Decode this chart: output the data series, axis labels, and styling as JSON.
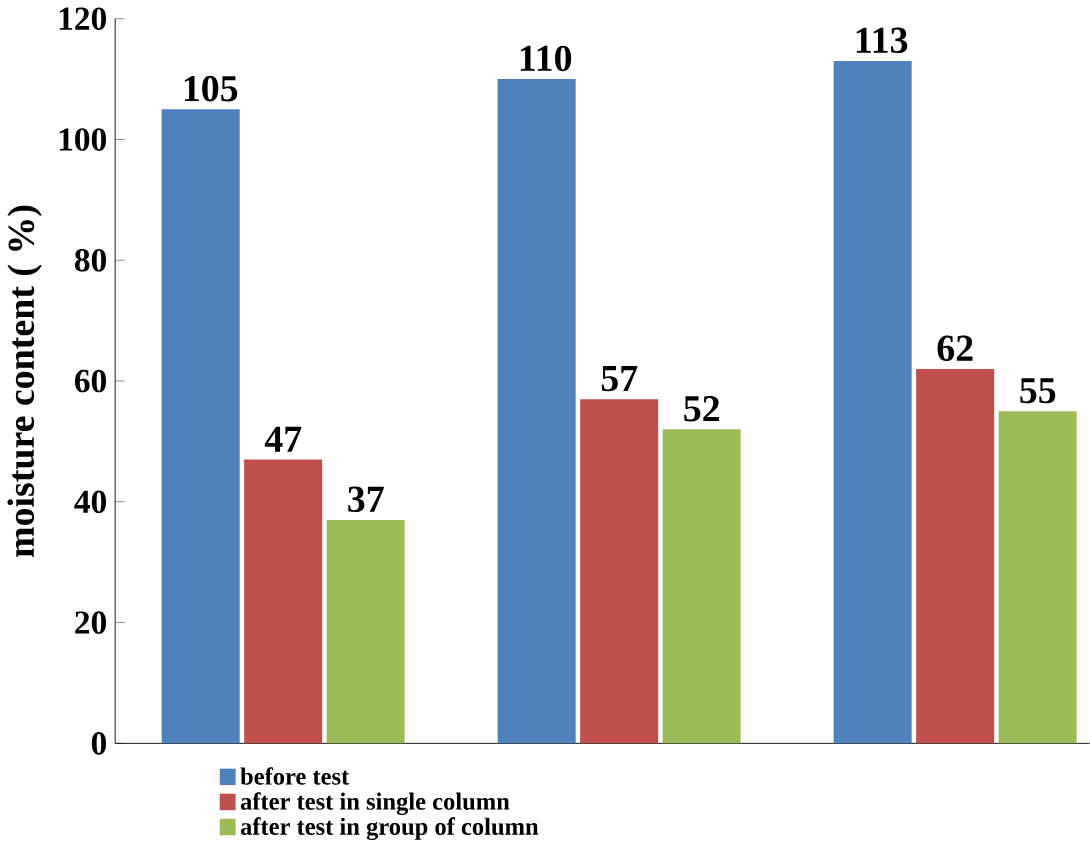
{
  "chart_data": {
    "type": "bar",
    "ylabel": "moisture content ( %)",
    "categories": [
      null,
      null,
      null
    ],
    "series": [
      {
        "name": "before test",
        "color": "#4f81bd",
        "values": [
          105,
          110,
          113
        ]
      },
      {
        "name": "after test in single column",
        "color": "#c0504d",
        "values": [
          47,
          57,
          62
        ]
      },
      {
        "name": "after test in group of column",
        "color": "#9bbb59",
        "values": [
          37,
          52,
          55
        ]
      }
    ],
    "ylim": [
      0,
      120
    ],
    "yticks": [
      0,
      20,
      40,
      60,
      80,
      100,
      120
    ],
    "grid": false,
    "legend": "bottom",
    "data_labels": true
  }
}
